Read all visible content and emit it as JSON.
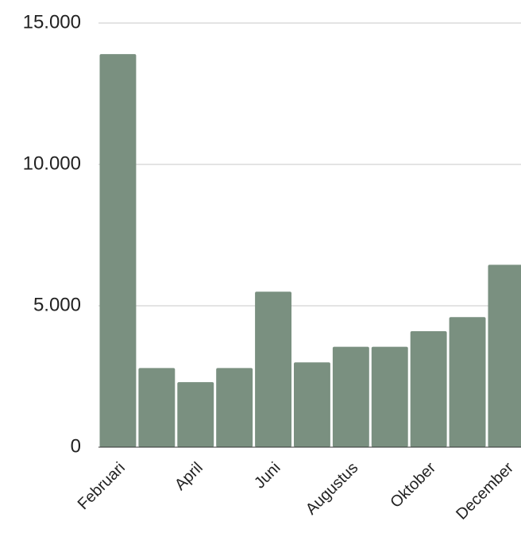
{
  "chart_data": {
    "type": "bar",
    "categories": [
      "Februari",
      null,
      "April",
      null,
      "Juni",
      null,
      "Augustus",
      null,
      "Oktober",
      null,
      "December"
    ],
    "values": [
      13900,
      2800,
      2300,
      2800,
      5500,
      3000,
      3550,
      3550,
      4100,
      4600,
      6450
    ],
    "color": "#7a9080",
    "ylim": [
      0,
      15000
    ],
    "yticks": [
      0,
      {
        "value": 5000,
        "label": "5.000"
      },
      {
        "value": 10000,
        "label": "10.000"
      },
      {
        "value": 15000,
        "label": "15.000"
      }
    ],
    "grid": true
  }
}
